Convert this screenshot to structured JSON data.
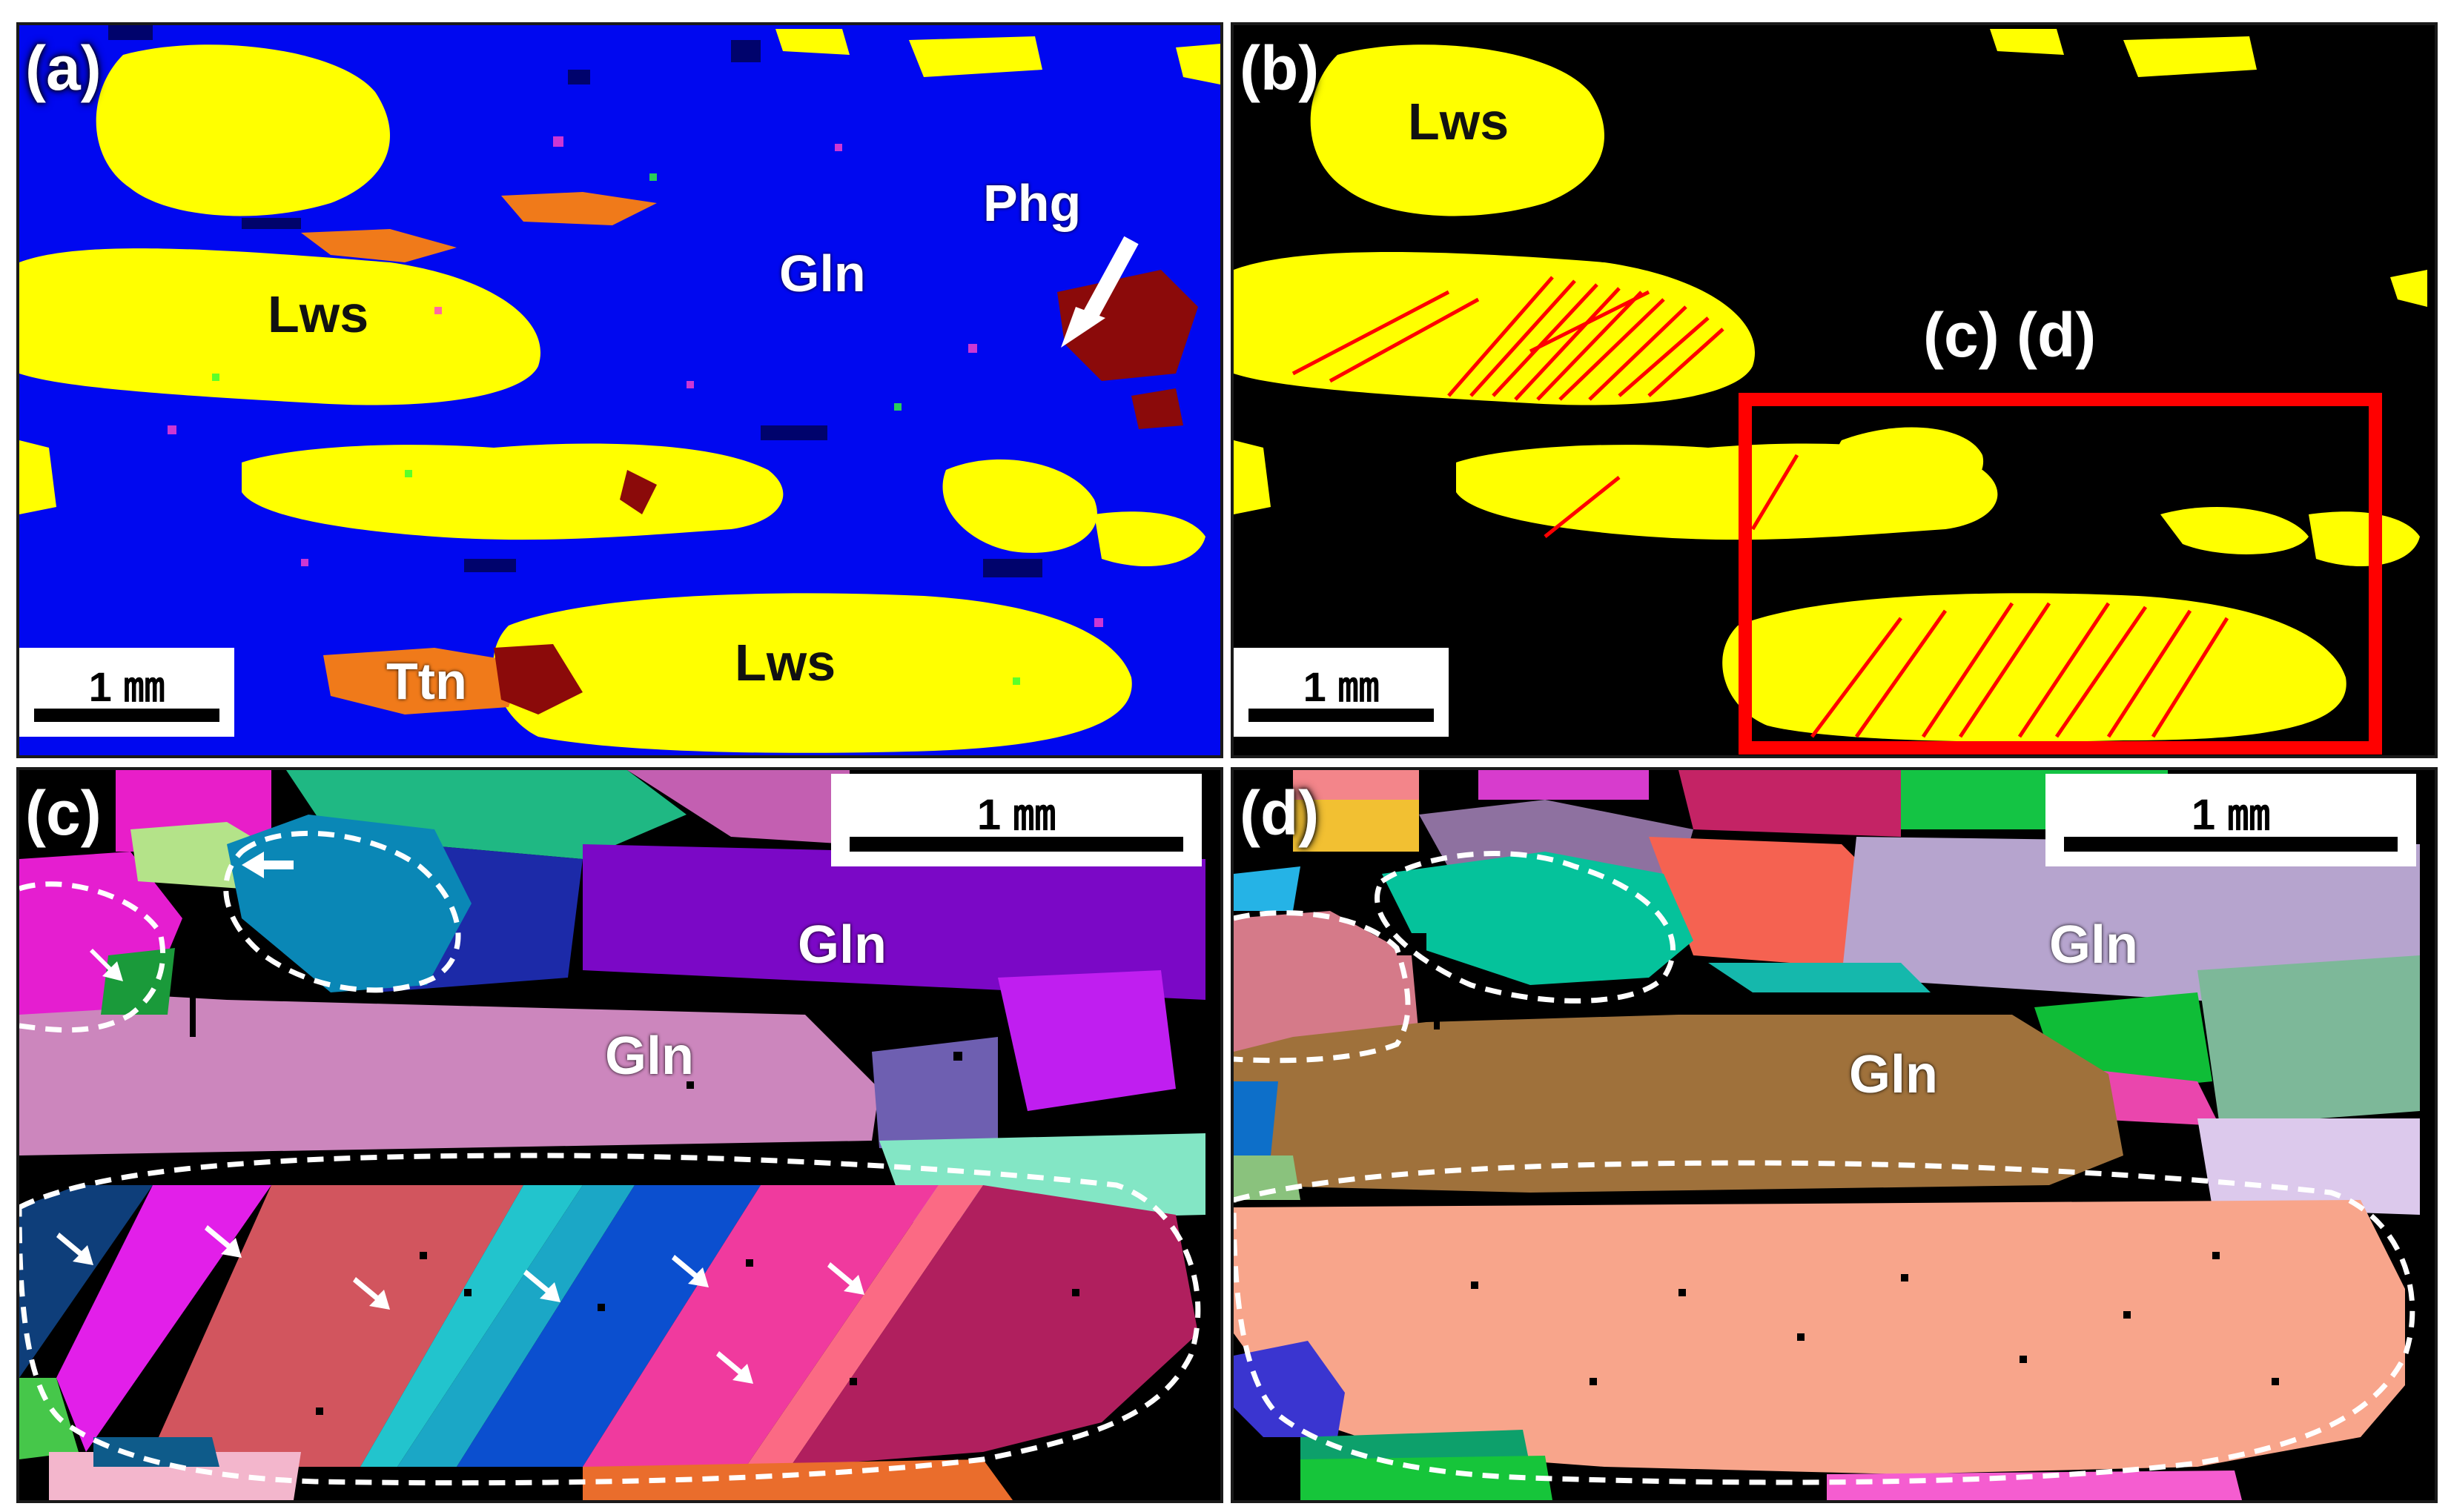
{
  "panels": {
    "a": {
      "label": "(a)",
      "labels": {
        "lws1": "Lws",
        "gln": "Gln",
        "phg": "Phg",
        "lws2": "Lws",
        "ttn": "Ttn"
      },
      "scale": "1 ㎜"
    },
    "b": {
      "label": "(b)",
      "labels": {
        "lws": "Lws",
        "cd": "(c) (d)"
      },
      "scale": "1 ㎜"
    },
    "c": {
      "label": "(c)",
      "labels": {
        "gln1": "Gln",
        "gln2": "Gln"
      },
      "scale": "1 ㎜"
    },
    "d": {
      "label": "(d)",
      "labels": {
        "gln1": "Gln",
        "gln2": "Gln"
      },
      "scale": "1 ㎜"
    }
  },
  "colors": {
    "lawsonite": "#ffff00",
    "glaucophane": "#0000ff",
    "titanite": "#f07a1a",
    "phengite": "#8b0a0a",
    "twin_boundary": "#ff0000",
    "highlight_box": "#ff0000"
  }
}
